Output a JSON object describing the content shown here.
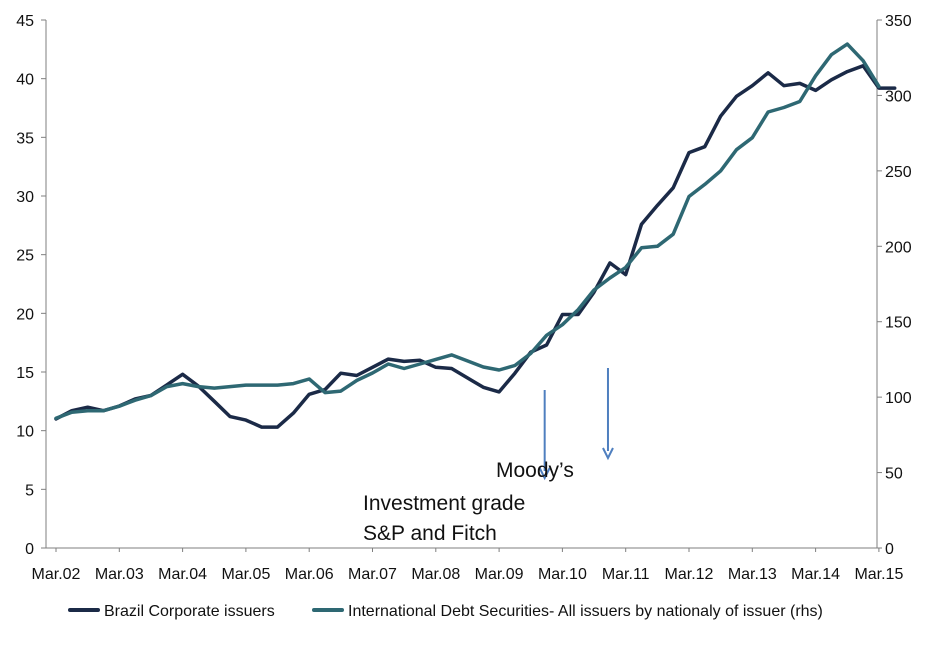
{
  "chart_data": {
    "type": "line",
    "x_tick_labels": [
      "Mar.02",
      "Mar.03",
      "Mar.04",
      "Mar.05",
      "Mar.06",
      "Mar.07",
      "Mar.08",
      "Mar.09",
      "Mar.10",
      "Mar.11",
      "Mar.12",
      "Mar.13",
      "Mar.14",
      "Mar.15"
    ],
    "y_left": {
      "min": 0,
      "max": 45,
      "step": 5,
      "ticks": [
        "0",
        "5",
        "10",
        "15",
        "20",
        "25",
        "30",
        "35",
        "40",
        "45"
      ]
    },
    "y_right": {
      "min": 0,
      "max": 350,
      "step": 50,
      "ticks": [
        "0",
        "50",
        "100",
        "150",
        "200",
        "250",
        "300",
        "350"
      ]
    },
    "grid": false,
    "legend_position": "bottom",
    "series": [
      {
        "name": "Brazil Corporate issuers",
        "axis": "left",
        "color": "#1b2a47",
        "x": [
          0,
          0.25,
          0.5,
          0.75,
          1,
          1.25,
          1.5,
          1.75,
          2,
          2.25,
          2.5,
          2.75,
          3,
          3.25,
          3.5,
          3.75,
          4,
          4.25,
          4.5,
          4.75,
          5,
          5.25,
          5.5,
          5.75,
          6,
          6.25,
          6.5,
          6.75,
          7,
          7.25,
          7.5,
          7.75,
          8,
          8.25,
          8.5,
          8.75,
          9,
          9.25,
          9.5,
          9.75,
          10,
          10.25,
          10.5,
          10.75,
          11,
          11.25,
          11.5,
          11.75,
          12,
          12.25,
          12.5,
          12.75,
          13,
          13.25
        ],
        "y": [
          11,
          11.7,
          12,
          11.7,
          12.1,
          12.7,
          13,
          13.9,
          14.8,
          13.8,
          12.5,
          11.2,
          10.9,
          10.3,
          10.3,
          11.5,
          13.1,
          13.5,
          14.9,
          14.7,
          15.4,
          16.1,
          15.9,
          16,
          15.4,
          15.3,
          14.5,
          13.7,
          13.3,
          14.9,
          16.7,
          17.3,
          19.9,
          19.9,
          21.8,
          24.3,
          23.3,
          27.6,
          29.2,
          30.7,
          33.7,
          34.2,
          36.8,
          38.5,
          39.4,
          40.5,
          39.4,
          39.6,
          39,
          39.9,
          40.6,
          41.1,
          39.2,
          39.2
        ],
        "line_width": 3.5
      },
      {
        "name": "International Debt Securities- All issuers by nationaly of issuer (rhs)",
        "axis": "right",
        "color": "#2e6873",
        "x": [
          0,
          0.25,
          0.5,
          0.75,
          1,
          1.25,
          1.5,
          1.75,
          2,
          2.25,
          2.5,
          2.75,
          3,
          3.25,
          3.5,
          3.75,
          4,
          4.25,
          4.5,
          4.75,
          5,
          5.25,
          5.5,
          5.75,
          6,
          6.25,
          6.5,
          6.75,
          7,
          7.25,
          7.5,
          7.75,
          8,
          8.25,
          8.5,
          8.75,
          9,
          9.25,
          9.5,
          9.75,
          10,
          10.25,
          10.5,
          10.75,
          11,
          11.25,
          11.5,
          11.75,
          12,
          12.25,
          12.5,
          12.75,
          13
        ],
        "y": [
          86,
          90,
          91,
          91,
          94,
          98,
          101,
          107,
          109,
          107,
          106,
          107,
          108,
          108,
          108,
          109,
          112,
          103,
          104,
          111,
          116,
          122,
          119,
          122,
          125,
          128,
          124,
          120,
          118,
          121,
          129,
          141,
          148,
          158,
          171,
          179,
          186,
          199,
          200,
          208,
          233,
          241,
          250,
          264,
          272,
          289,
          292,
          296,
          313,
          327,
          334,
          323,
          306
        ],
        "line_width": 3.5
      }
    ],
    "annotations": [
      {
        "text_lines": [
          "Investment grade",
          "S&P and Fitch"
        ],
        "arrow_at_x": 7.72
      },
      {
        "text_lines": [
          "Moody’s"
        ],
        "arrow_at_x": 8.72
      }
    ]
  }
}
